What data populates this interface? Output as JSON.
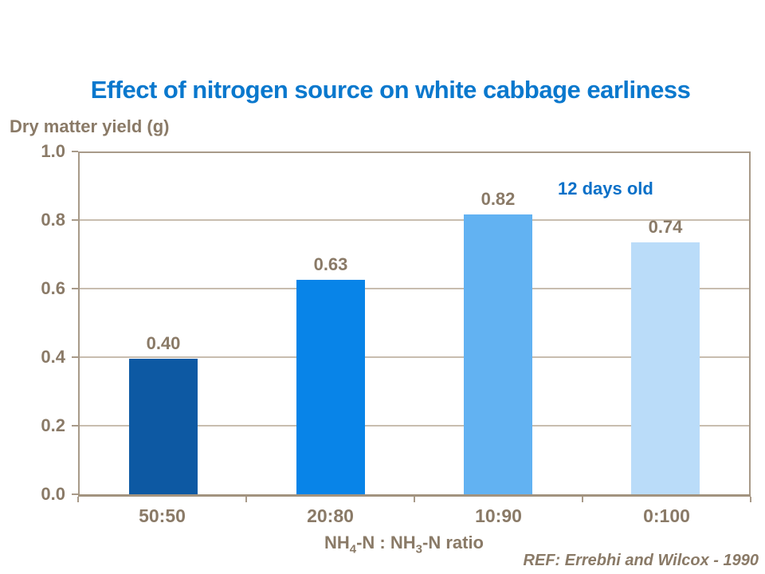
{
  "page": {
    "title": "Effect of nitrogen source on white cabbage earliness",
    "reference": "REF: Errebhi and Wilcox - 1990"
  },
  "chart_data": {
    "type": "bar",
    "title": "Effect of nitrogen source on white cabbage earliness",
    "ylabel": "Dry matter yield (g)",
    "xlabel": "NH4-N : NH3-N ratio",
    "xlabel_rich": {
      "base1": "NH",
      "sub1": "4",
      "mid1": "-N : NH",
      "sub2": "3",
      "mid2": "-N ratio"
    },
    "annotation": "12 days old",
    "categories": [
      "50:50",
      "20:80",
      "10:90",
      "0:100"
    ],
    "values": [
      0.4,
      0.63,
      0.82,
      0.74
    ],
    "value_labels": [
      "0.40",
      "0.63",
      "0.82",
      "0.74"
    ],
    "bar_colors": [
      "#0d59a3",
      "#0884e8",
      "#62b2f2",
      "#badcf9"
    ],
    "ylim": [
      0,
      1
    ],
    "ytick_values": [
      1.0,
      0.8,
      0.6,
      0.4,
      0.2,
      0.0
    ],
    "ytick_labels": [
      "1.0",
      "0.8",
      "0.6",
      "0.4",
      "0.2",
      "0.0"
    ],
    "grid": true,
    "legend_position": "none",
    "reference": "REF: Errebhi and Wilcox - 1990"
  },
  "colors": {
    "title_blue": "#0a78cd",
    "annotation_blue": "#0a70c8",
    "axis_text_brown": "#8a7a67",
    "plot_border_tan": "#a89a89",
    "gridline_tan": "#c8bdaf",
    "axis_line_tan": "#a2937f",
    "background": "#ffffff"
  }
}
